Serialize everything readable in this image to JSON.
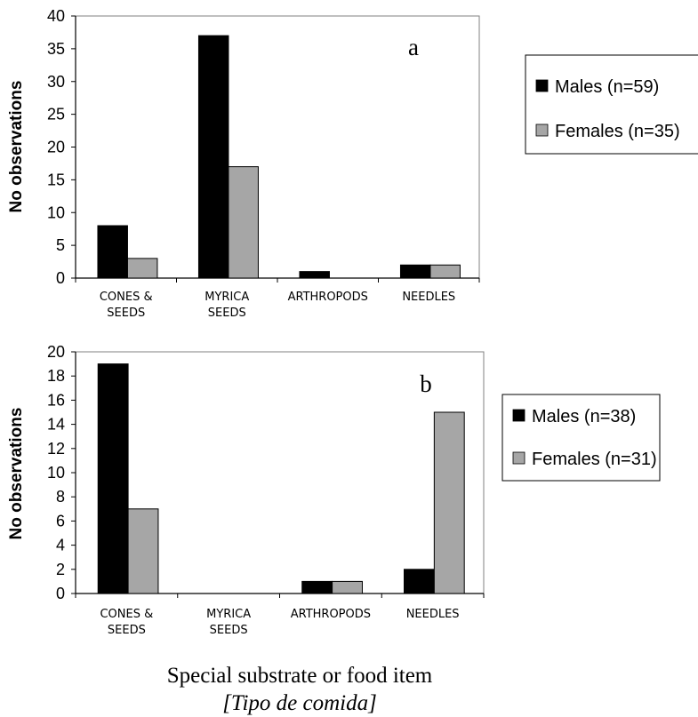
{
  "chart_data": [
    {
      "type": "bar",
      "panel_label": "a",
      "categories": [
        [
          "CONES &",
          "SEEDS"
        ],
        [
          "MYRICA",
          "SEEDS"
        ],
        [
          "ARTHROPODS"
        ],
        [
          "NEEDLES"
        ]
      ],
      "ylabel": "No observations",
      "ylim": [
        0,
        40
      ],
      "yticks": [
        0,
        5,
        10,
        15,
        20,
        25,
        30,
        35,
        40
      ],
      "series": [
        {
          "name": "Males (n=59)",
          "color": "#000000",
          "values": [
            8,
            37,
            1,
            2
          ]
        },
        {
          "name": "Females (n=35)",
          "color": "#a6a6a6",
          "values": [
            3,
            17,
            0,
            2
          ]
        }
      ],
      "legend": "right"
    },
    {
      "type": "bar",
      "panel_label": "b",
      "categories": [
        [
          "CONES &",
          "SEEDS"
        ],
        [
          "MYRICA",
          "SEEDS"
        ],
        [
          "ARTHROPODS"
        ],
        [
          "NEEDLES"
        ]
      ],
      "ylabel": "No observations",
      "ylim": [
        0,
        20
      ],
      "yticks": [
        0,
        2,
        4,
        6,
        8,
        10,
        12,
        14,
        16,
        18,
        20
      ],
      "series": [
        {
          "name": "Males (n=38)",
          "color": "#000000",
          "values": [
            19,
            0,
            1,
            2
          ]
        },
        {
          "name": "Females (n=31)",
          "color": "#a6a6a6",
          "values": [
            7,
            0,
            1,
            15
          ]
        }
      ],
      "legend": "right"
    }
  ],
  "xlabel": "Special substrate or food item",
  "xlabel_sub": "[Tipo de comida]"
}
